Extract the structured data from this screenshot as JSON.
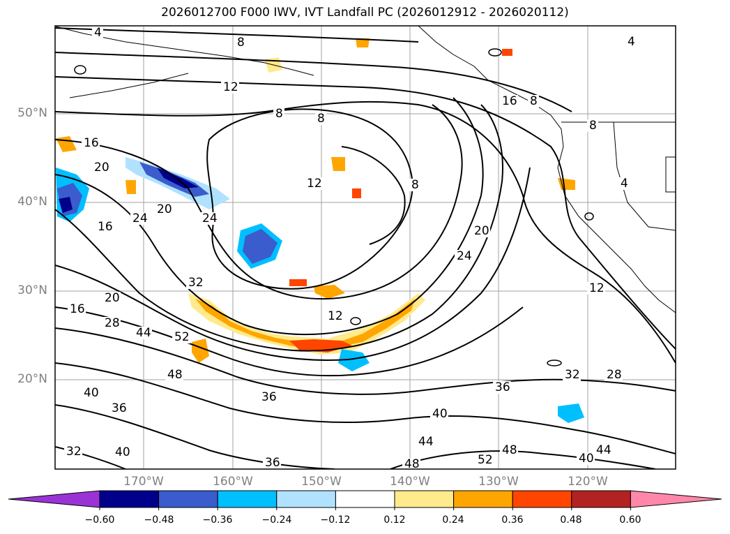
{
  "title": "2026012700 F000 IWV, IVT Landfall PC (2026012912 - 2026020112)",
  "map": {
    "lat_labels": [
      "50°N",
      "40°N",
      "30°N",
      "20°N"
    ],
    "lon_labels": [
      "170°W",
      "160°W",
      "150°W",
      "140°W",
      "130°W",
      "120°W"
    ],
    "contour_labels": [
      "4",
      "8",
      "12",
      "8",
      "8",
      "16",
      "20",
      "24",
      "20",
      "16",
      "12",
      "8",
      "16",
      "8",
      "4",
      "4",
      "12",
      "8",
      "24",
      "20",
      "24",
      "32",
      "16",
      "20",
      "28",
      "44",
      "52",
      "48",
      "40",
      "36",
      "36",
      "36",
      "40",
      "44",
      "48",
      "40",
      "32",
      "52",
      "48",
      "40",
      "44",
      "36",
      "32",
      "28",
      "12"
    ]
  },
  "colorbar": {
    "ticks": [
      "−0.60",
      "−0.48",
      "−0.36",
      "−0.24",
      "−0.12",
      "0.12",
      "0.24",
      "0.36",
      "0.48",
      "0.60"
    ],
    "colors": [
      "#9a33d6",
      "#00008b",
      "#3a5ccc",
      "#00bfff",
      "#b0e2ff",
      "#ffffff",
      "#ffea8c",
      "#ffa500",
      "#ff4500",
      "#b22222",
      "#ff88aa"
    ]
  }
}
